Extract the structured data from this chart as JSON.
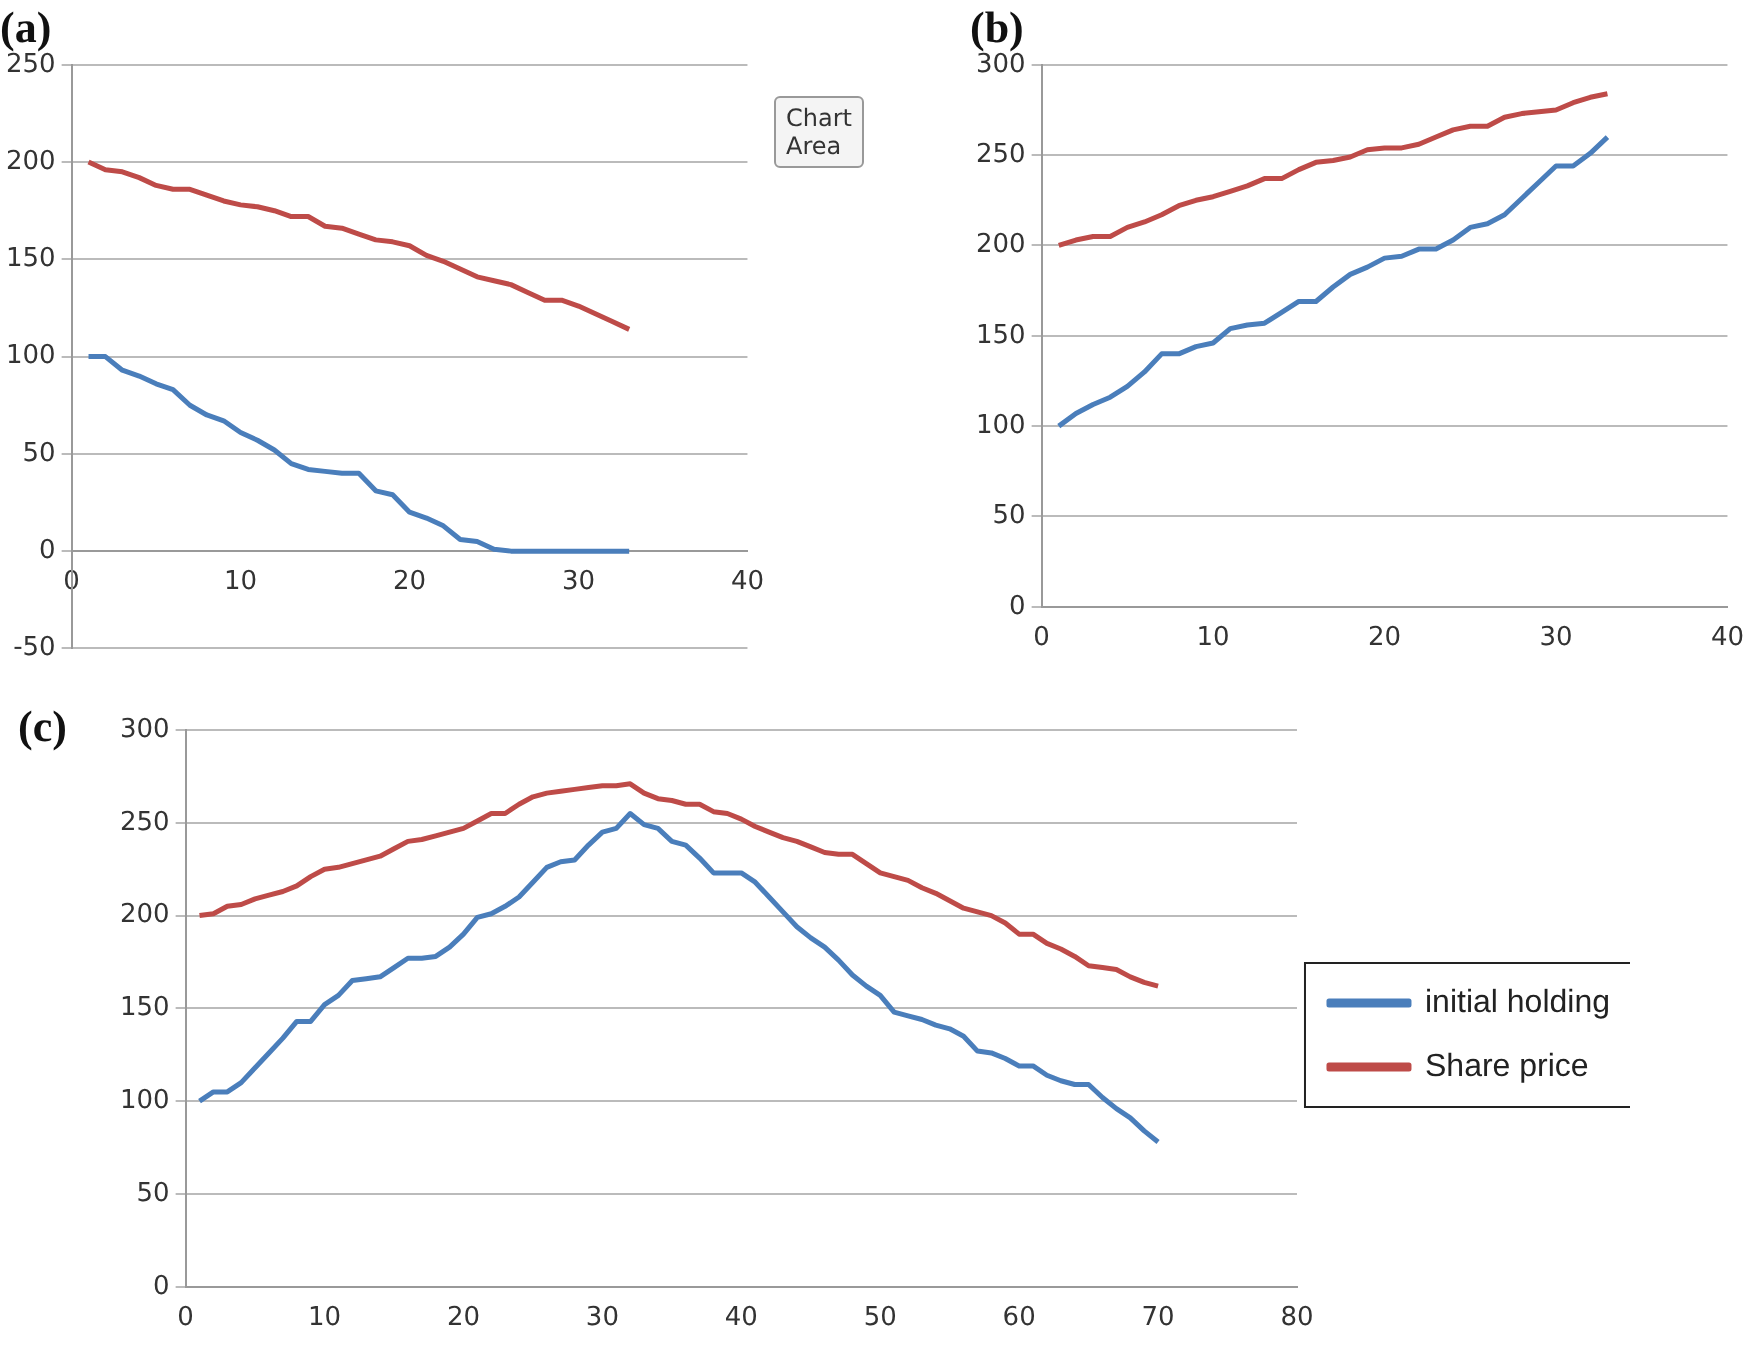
{
  "chart_data": [
    {
      "type": "line",
      "title": "(a)",
      "annotations": [
        "Chart Area"
      ],
      "xlim": [
        0,
        40
      ],
      "ylim": [
        -50,
        250
      ],
      "xticks": [
        0,
        10,
        20,
        30,
        40
      ],
      "yticks": [
        -50,
        0,
        50,
        100,
        150,
        200,
        250
      ],
      "grid": "y",
      "legend": false,
      "marker": "none",
      "x": [
        1,
        2,
        3,
        4,
        5,
        6,
        7,
        8,
        9,
        10,
        11,
        12,
        13,
        14,
        15,
        16,
        17,
        18,
        19,
        20,
        21,
        22,
        23,
        24,
        25,
        26,
        27,
        28,
        29,
        30,
        31,
        32,
        33
      ],
      "series": [
        {
          "color": "#4a7ebb",
          "values": [
            100,
            100,
            93,
            90,
            86,
            83,
            75,
            70,
            67,
            61,
            57,
            52,
            45,
            42,
            41,
            40,
            40,
            31,
            29,
            20,
            17,
            13,
            6,
            5,
            1,
            0,
            0,
            0,
            0,
            0,
            0,
            0,
            0
          ]
        },
        {
          "color": "#be4b48",
          "values": [
            200,
            196,
            195,
            192,
            188,
            186,
            186,
            183,
            180,
            178,
            177,
            175,
            172,
            172,
            167,
            166,
            163,
            160,
            159,
            157,
            152,
            149,
            145,
            141,
            139,
            137,
            133,
            129,
            129,
            126,
            122,
            118,
            114
          ]
        }
      ]
    },
    {
      "type": "line",
      "title": "(b)",
      "xlim": [
        0,
        40
      ],
      "ylim": [
        0,
        300
      ],
      "xticks": [
        0,
        10,
        20,
        30,
        40
      ],
      "yticks": [
        0,
        50,
        100,
        150,
        200,
        250,
        300
      ],
      "grid": "y",
      "legend": false,
      "marker": "none",
      "x": [
        1,
        2,
        3,
        4,
        5,
        6,
        7,
        8,
        9,
        10,
        11,
        12,
        13,
        14,
        15,
        16,
        17,
        18,
        19,
        20,
        21,
        22,
        23,
        24,
        25,
        26,
        27,
        28,
        29,
        30,
        31,
        32,
        33
      ],
      "series": [
        {
          "color": "#4a7ebb",
          "values": [
            100,
            107,
            112,
            116,
            122,
            130,
            140,
            140,
            144,
            146,
            154,
            156,
            157,
            163,
            169,
            169,
            177,
            184,
            188,
            193,
            194,
            198,
            198,
            203,
            210,
            212,
            217,
            226,
            235,
            244,
            244,
            251,
            260
          ]
        },
        {
          "color": "#be4b48",
          "values": [
            200,
            203,
            205,
            205,
            210,
            213,
            217,
            222,
            225,
            227,
            230,
            233,
            237,
            237,
            242,
            246,
            247,
            249,
            253,
            254,
            254,
            256,
            260,
            264,
            266,
            266,
            271,
            273,
            274,
            275,
            279,
            282,
            284
          ]
        }
      ]
    },
    {
      "type": "line",
      "title": "(c)",
      "xlim": [
        0,
        80
      ],
      "ylim": [
        0,
        300
      ],
      "xticks": [
        0,
        10,
        20,
        30,
        40,
        50,
        60,
        70,
        80
      ],
      "yticks": [
        0,
        50,
        100,
        150,
        200,
        250,
        300
      ],
      "grid": "y",
      "legend": "right",
      "marker": "none",
      "x": [
        1,
        2,
        3,
        4,
        5,
        6,
        7,
        8,
        9,
        10,
        11,
        12,
        13,
        14,
        15,
        16,
        17,
        18,
        19,
        20,
        21,
        22,
        23,
        24,
        25,
        26,
        27,
        28,
        29,
        30,
        31,
        32,
        33,
        34,
        35,
        36,
        37,
        38,
        39,
        40,
        41,
        42,
        43,
        44,
        45,
        46,
        47,
        48,
        49,
        50,
        51,
        52,
        53,
        54,
        55,
        56,
        57,
        58,
        59,
        60,
        61,
        62,
        63,
        64,
        65,
        66,
        67,
        68,
        69,
        70
      ],
      "series": [
        {
          "name": "initial holding",
          "color": "#4a7ebb",
          "values": [
            100,
            105,
            105,
            110,
            118,
            126,
            134,
            143,
            143,
            152,
            157,
            165,
            166,
            167,
            172,
            177,
            177,
            178,
            183,
            190,
            199,
            201,
            205,
            210,
            218,
            226,
            229,
            230,
            238,
            245,
            247,
            255,
            249,
            247,
            240,
            238,
            231,
            223,
            223,
            223,
            218,
            210,
            202,
            194,
            188,
            183,
            176,
            168,
            162,
            157,
            148,
            146,
            144,
            141,
            139,
            135,
            127,
            126,
            123,
            119,
            119,
            114,
            111,
            109,
            109,
            102,
            96,
            91,
            84,
            78
          ]
        },
        {
          "name": "Share price",
          "color": "#be4b48",
          "values": [
            200,
            201,
            205,
            206,
            209,
            211,
            213,
            216,
            221,
            225,
            226,
            228,
            230,
            232,
            236,
            240,
            241,
            243,
            245,
            247,
            251,
            255,
            255,
            260,
            264,
            266,
            267,
            268,
            269,
            270,
            270,
            271,
            266,
            263,
            262,
            260,
            260,
            256,
            255,
            252,
            248,
            245,
            242,
            240,
            237,
            234,
            233,
            233,
            228,
            223,
            221,
            219,
            215,
            212,
            208,
            204,
            202,
            200,
            196,
            190,
            190,
            185,
            182,
            178,
            173,
            172,
            171,
            167,
            164,
            162
          ]
        }
      ]
    }
  ]
}
